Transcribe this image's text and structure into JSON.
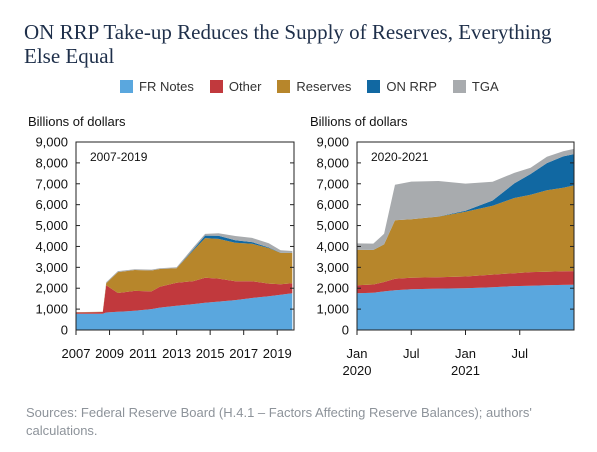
{
  "title": "ON RRP Take-up Reduces the Supply of Reserves, Everything Else Equal",
  "legend": [
    {
      "label": "FR Notes",
      "color": "#5aa7de"
    },
    {
      "label": "Other",
      "color": "#c1393d"
    },
    {
      "label": "Reserves",
      "color": "#b7862b"
    },
    {
      "label": "ON RRP",
      "color": "#1168a2"
    },
    {
      "label": "TGA",
      "color": "#a8abae"
    }
  ],
  "source": "Sources: Federal Reserve Board (H.4.1 – Factors Affecting Reserve Balances); authors' calculations.",
  "chart_data": [
    {
      "type": "area",
      "stacked": true,
      "panel_label": "2007-2019",
      "ylabel": "Billions of dollars",
      "ylim": [
        0,
        9000
      ],
      "yticks": [
        "9,000",
        "8,000",
        "7,000",
        "6,000",
        "5,000",
        "4,000",
        "3,000",
        "2,000",
        "1,000",
        "0"
      ],
      "xlim": [
        2007,
        2020
      ],
      "xticks": [
        "2007",
        "2009",
        "2011",
        "2013",
        "2015",
        "2017",
        "2019"
      ],
      "x": [
        2007.0,
        2008.6,
        2008.8,
        2009.5,
        2010.5,
        2011.5,
        2012.0,
        2013.0,
        2014.0,
        2014.7,
        2015.5,
        2016.5,
        2017.5,
        2018.5,
        2019.2,
        2019.9
      ],
      "series": [
        {
          "name": "FR Notes",
          "values": [
            780,
            780,
            840,
            870,
            920,
            1000,
            1070,
            1160,
            1240,
            1300,
            1360,
            1430,
            1530,
            1620,
            1690,
            1760
          ]
        },
        {
          "name": "Other",
          "values": [
            60,
            80,
            1300,
            900,
            950,
            850,
            1000,
            1100,
            1100,
            1200,
            1100,
            900,
            800,
            600,
            500,
            480
          ]
        },
        {
          "name": "Reserves",
          "values": [
            10,
            10,
            100,
            1000,
            1000,
            1000,
            850,
            700,
            1480,
            1900,
            1900,
            1850,
            1800,
            1700,
            1500,
            1450
          ]
        },
        {
          "name": "ON RRP",
          "values": [
            0,
            0,
            0,
            0,
            0,
            0,
            0,
            0,
            50,
            120,
            150,
            120,
            80,
            30,
            10,
            10
          ]
        },
        {
          "name": "TGA",
          "values": [
            5,
            5,
            50,
            50,
            40,
            40,
            40,
            40,
            90,
            80,
            120,
            200,
            200,
            200,
            120,
            80
          ]
        }
      ]
    },
    {
      "type": "area",
      "stacked": true,
      "panel_label": "2020-2021",
      "ylabel": "Billions of dollars",
      "ylim": [
        0,
        9000
      ],
      "yticks": [
        "9,000",
        "8,000",
        "7,000",
        "6,000",
        "5,000",
        "4,000",
        "3,000",
        "2,000",
        "1,000",
        "0"
      ],
      "xlim": [
        2020.0,
        2022.0
      ],
      "xticks": [
        {
          "pos": 2020.0,
          "label": "Jan",
          "sub": "2020"
        },
        {
          "pos": 2020.5,
          "label": "Jul",
          "sub": ""
        },
        {
          "pos": 2021.0,
          "label": "Jan",
          "sub": "2021"
        },
        {
          "pos": 2021.5,
          "label": "Jul",
          "sub": ""
        }
      ],
      "x": [
        2020.0,
        2020.15,
        2020.25,
        2020.35,
        2020.5,
        2020.75,
        2021.0,
        2021.25,
        2021.45,
        2021.6,
        2021.75,
        2021.9,
        2022.0
      ],
      "series": [
        {
          "name": "FR Notes",
          "values": [
            1760,
            1780,
            1850,
            1900,
            1950,
            1980,
            2000,
            2050,
            2100,
            2120,
            2140,
            2160,
            2170
          ]
        },
        {
          "name": "Other",
          "values": [
            380,
            400,
            450,
            550,
            550,
            550,
            560,
            600,
            620,
            650,
            650,
            650,
            650
          ]
        },
        {
          "name": "Reserves",
          "values": [
            1700,
            1650,
            1800,
            2800,
            2800,
            2900,
            3100,
            3300,
            3600,
            3700,
            3900,
            4000,
            4100
          ]
        },
        {
          "name": "ON RRP",
          "values": [
            5,
            5,
            5,
            5,
            5,
            5,
            50,
            250,
            700,
            1000,
            1300,
            1500,
            1500
          ]
        },
        {
          "name": "TGA",
          "values": [
            300,
            300,
            500,
            1700,
            1800,
            1700,
            1300,
            900,
            500,
            300,
            300,
            250,
            250
          ]
        }
      ]
    }
  ]
}
